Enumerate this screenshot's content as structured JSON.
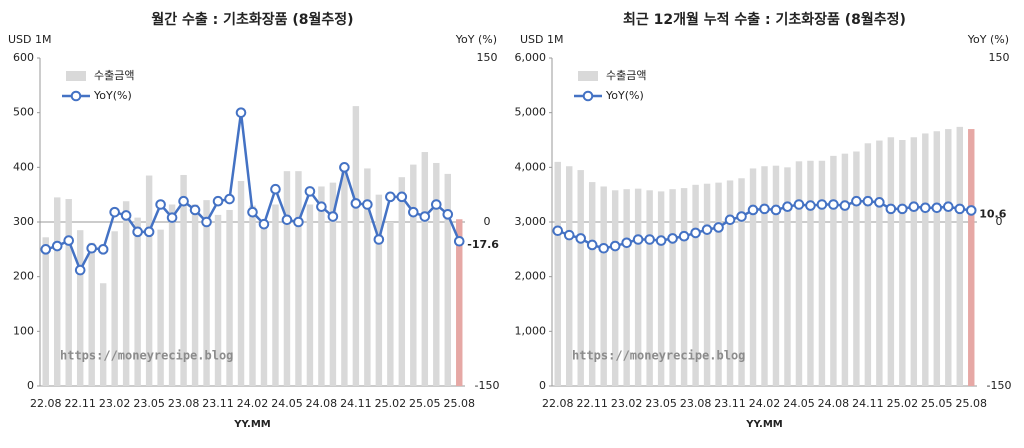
{
  "chart_data": [
    {
      "type": "bar_line",
      "title": "월간 수출 : 기초화장품 (8월추정)",
      "y_label": "USD 1M",
      "y2_label": "YoY (%)",
      "x_label": "YY.MM",
      "watermark": "https://moneyrecipe.blog",
      "legend": "upper left",
      "categories": [
        "22.08",
        null,
        null,
        "22.11",
        null,
        null,
        "23.02",
        null,
        null,
        "23.05",
        null,
        null,
        "23.08",
        null,
        null,
        "23.11",
        null,
        null,
        "24.02",
        null,
        null,
        "24.05",
        null,
        null,
        "24.08",
        null,
        null,
        "24.11",
        null,
        null,
        "25.02",
        null,
        null,
        "25.05",
        null,
        null,
        "25.08"
      ],
      "series": [
        {
          "name": "수출금액",
          "type": "bar",
          "color": "#d9d9d9",
          "last_color": "#e6a8a5",
          "values": [
            272,
            345,
            342,
            285,
            262,
            188,
            283,
            338,
            308,
            385,
            286,
            332,
            386,
            332,
            340,
            313,
            322,
            375,
            330,
            302,
            332,
            393,
            393,
            332,
            365,
            372,
            400,
            512,
            398,
            350,
            300,
            382,
            405,
            428,
            408,
            388,
            305
          ]
        },
        {
          "name": "YoY(%)",
          "type": "line",
          "axis": "y2",
          "color": "#4472c4",
          "last_label_color": "#ff0000",
          "values": [
            -25,
            -22,
            -17,
            -44,
            -24,
            -25,
            9,
            6,
            -9,
            -9,
            16,
            4,
            19,
            11,
            0,
            19,
            21,
            100,
            9,
            -2,
            30,
            2,
            0,
            28,
            14,
            5,
            50,
            17,
            16,
            -16,
            23,
            23,
            9,
            5,
            16,
            7,
            -17.6
          ]
        }
      ],
      "ylim": [
        0,
        600
      ],
      "yticks": [
        0,
        100,
        200,
        300,
        400,
        500,
        600
      ],
      "y2lim": [
        -150,
        150
      ],
      "y2ticks": [
        -150,
        0,
        150
      ]
    },
    {
      "type": "bar_line",
      "title": "최근 12개월 누적 수출 : 기초화장품 (8월추정)",
      "y_label": "USD 1M",
      "y2_label": "YoY (%)",
      "x_label": "YY.MM",
      "watermark": "https://moneyrecipe.blog",
      "legend": "upper left",
      "categories": [
        "22.08",
        null,
        null,
        "22.11",
        null,
        null,
        "23.02",
        null,
        null,
        "23.05",
        null,
        null,
        "23.08",
        null,
        null,
        "23.11",
        null,
        null,
        "24.02",
        null,
        null,
        "24.05",
        null,
        null,
        "24.08",
        null,
        null,
        "24.11",
        null,
        null,
        "25.02",
        null,
        null,
        "25.05",
        null,
        null,
        "25.08"
      ],
      "series": [
        {
          "name": "수출금액",
          "type": "bar",
          "color": "#d9d9d9",
          "last_color": "#e6a8a5",
          "values": [
            4100,
            4020,
            3950,
            3730,
            3650,
            3580,
            3600,
            3610,
            3580,
            3560,
            3600,
            3620,
            3680,
            3700,
            3720,
            3760,
            3800,
            3980,
            4020,
            4030,
            4000,
            4110,
            4120,
            4120,
            4210,
            4250,
            4290,
            4440,
            4490,
            4550,
            4500,
            4550,
            4620,
            4660,
            4700,
            4740,
            4700
          ]
        },
        {
          "name": "YoY(%)",
          "type": "line",
          "axis": "y2",
          "color": "#4472c4",
          "last_label_color": "#ff0000",
          "values": [
            -8,
            -12,
            -15,
            -21,
            -24,
            -22,
            -19,
            -16,
            -16,
            -17,
            -15,
            -13,
            -10,
            -7,
            -5,
            2,
            5,
            11,
            12,
            11,
            14,
            16,
            15,
            16,
            16,
            15,
            19,
            19,
            18,
            12,
            12,
            14,
            13,
            13,
            14,
            12,
            10.6
          ]
        }
      ],
      "ylim": [
        0,
        6000
      ],
      "yticks": [
        0,
        {
          "value": 1000,
          "label": "1,000"
        },
        {
          "value": 2000,
          "label": "2,000"
        },
        {
          "value": 3000,
          "label": "3,000"
        },
        {
          "value": 4000,
          "label": "4,000"
        },
        {
          "value": 5000,
          "label": "5,000"
        },
        {
          "value": 6000,
          "label": "6,000"
        }
      ],
      "y2lim": [
        -150,
        150
      ],
      "y2ticks": [
        -150,
        0,
        150
      ]
    }
  ]
}
